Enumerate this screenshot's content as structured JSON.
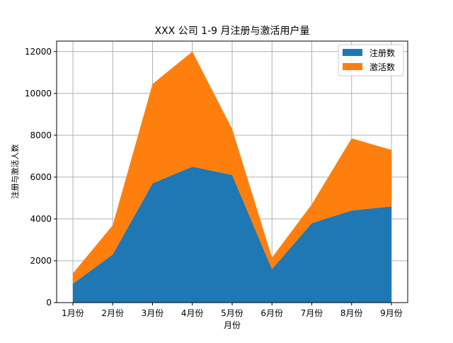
{
  "chart_data": {
    "type": "area",
    "stacked": true,
    "title": "XXX 公司 1-9 月注册与激活用户量",
    "xlabel": "月份",
    "ylabel": "注册与激活人数",
    "categories": [
      "1月份",
      "2月份",
      "3月份",
      "4月份",
      "5月份",
      "6月份",
      "7月份",
      "8月份",
      "9月份"
    ],
    "series": [
      {
        "name": "注册数",
        "color": "#1f77b4",
        "values": [
          900,
          2300,
          5700,
          6500,
          6100,
          1600,
          3800,
          4400,
          4600
        ]
      },
      {
        "name": "激活数",
        "color": "#ff7f0e",
        "values": [
          500,
          1400,
          4750,
          5500,
          2200,
          550,
          900,
          3450,
          2700
        ]
      }
    ],
    "ylim": [
      0,
      12500
    ],
    "yticks": [
      0,
      2000,
      4000,
      6000,
      8000,
      10000,
      12000
    ],
    "grid": true,
    "legend_position": "top-right"
  }
}
